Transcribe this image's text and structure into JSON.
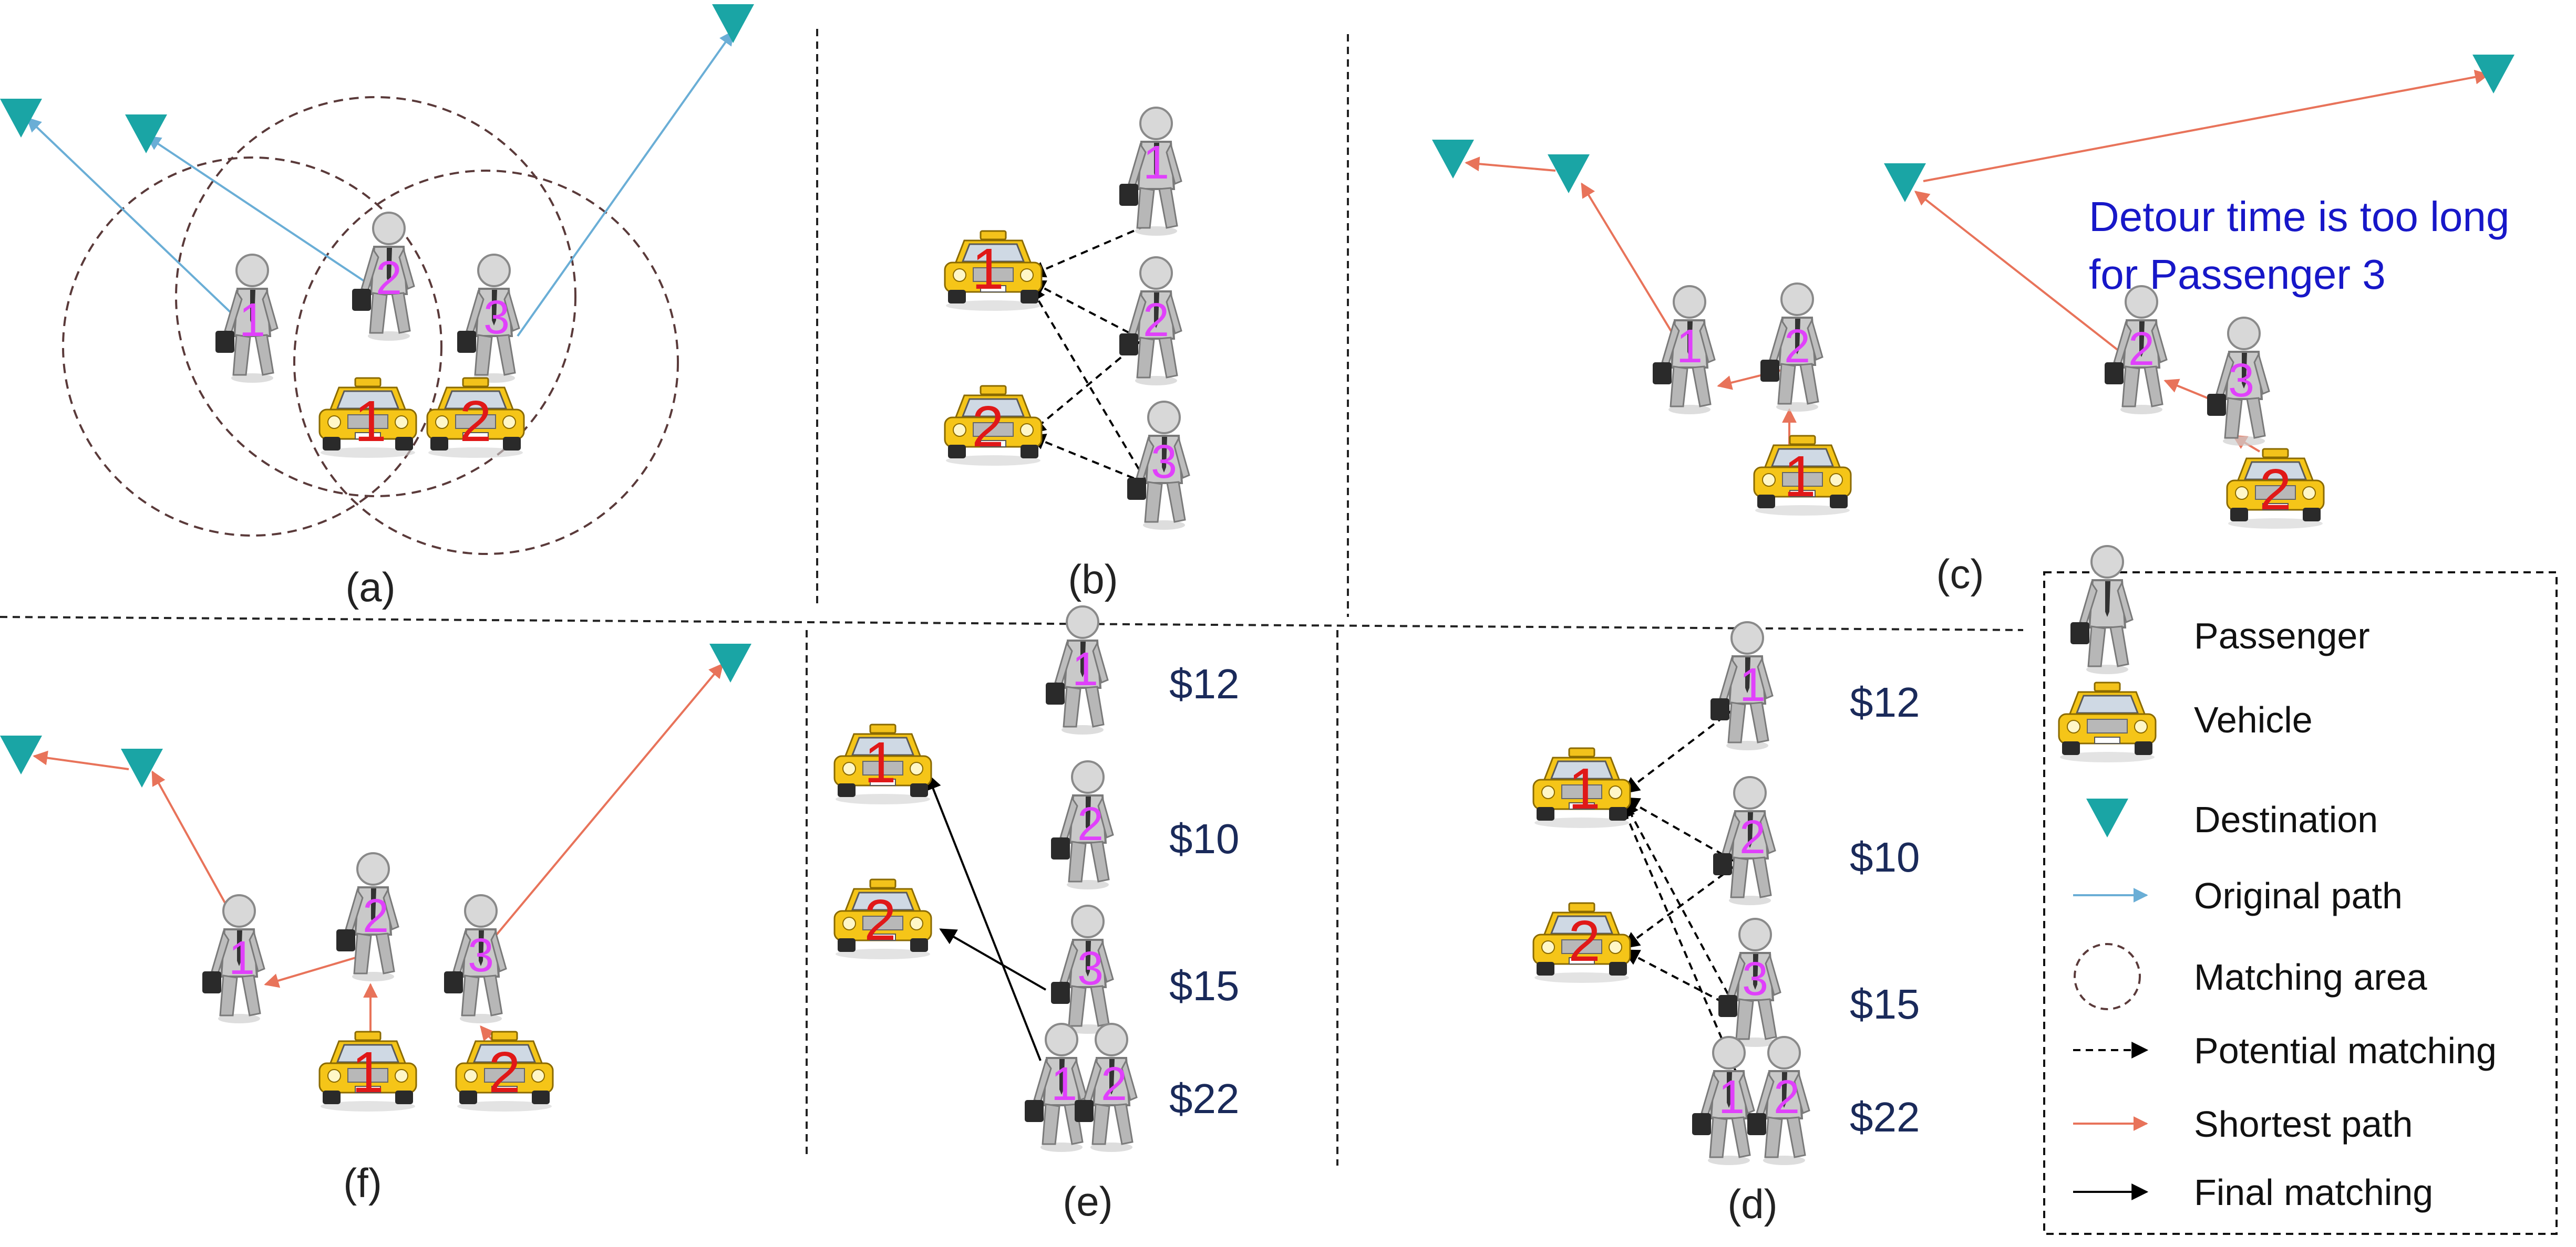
{
  "panels": [
    {
      "id": "a",
      "label": "(a)"
    },
    {
      "id": "b",
      "label": "(b)"
    },
    {
      "id": "c",
      "label": "(c)"
    },
    {
      "id": "d",
      "label": "(d)"
    },
    {
      "id": "e",
      "label": "(e)"
    },
    {
      "id": "f",
      "label": "(f)"
    }
  ],
  "passenger_ids": {
    "p1": "1",
    "p2": "2",
    "p3": "3"
  },
  "vehicle_ids": {
    "v1": "1",
    "v2": "2"
  },
  "note": {
    "line1": "Detour time is too long",
    "line2": "for Passenger 3"
  },
  "prices": {
    "p1": "$12",
    "p2": "$10",
    "p3": "$15",
    "p12": "$22"
  },
  "legend": [
    {
      "key": "passenger",
      "label": "Passenger",
      "icon": "passenger-icon"
    },
    {
      "key": "vehicle",
      "label": "Vehicle",
      "icon": "taxi-icon"
    },
    {
      "key": "destination",
      "label": "Destination",
      "icon": "destination-icon",
      "color": "#1aa5a5"
    },
    {
      "key": "original",
      "label": "Original path",
      "icon": "arrow-icon",
      "color": "#6aaed6"
    },
    {
      "key": "area",
      "label": "Matching area",
      "icon": "dashed-circle-icon",
      "color": "#5a3a3a"
    },
    {
      "key": "potential",
      "label": "Potential matching",
      "icon": "dashed-arrow-icon",
      "color": "#000000"
    },
    {
      "key": "shortest",
      "label": "Shortest path",
      "icon": "arrow-icon",
      "color": "#e8735a"
    },
    {
      "key": "final",
      "label": "Final matching",
      "icon": "arrow-icon",
      "color": "#000000"
    }
  ],
  "colors": {
    "destination": "#1aa5a5",
    "original_path": "#6aaed6",
    "shortest_path": "#e8735a",
    "matching": "#000000",
    "matching_area": "#5a3a3a"
  }
}
